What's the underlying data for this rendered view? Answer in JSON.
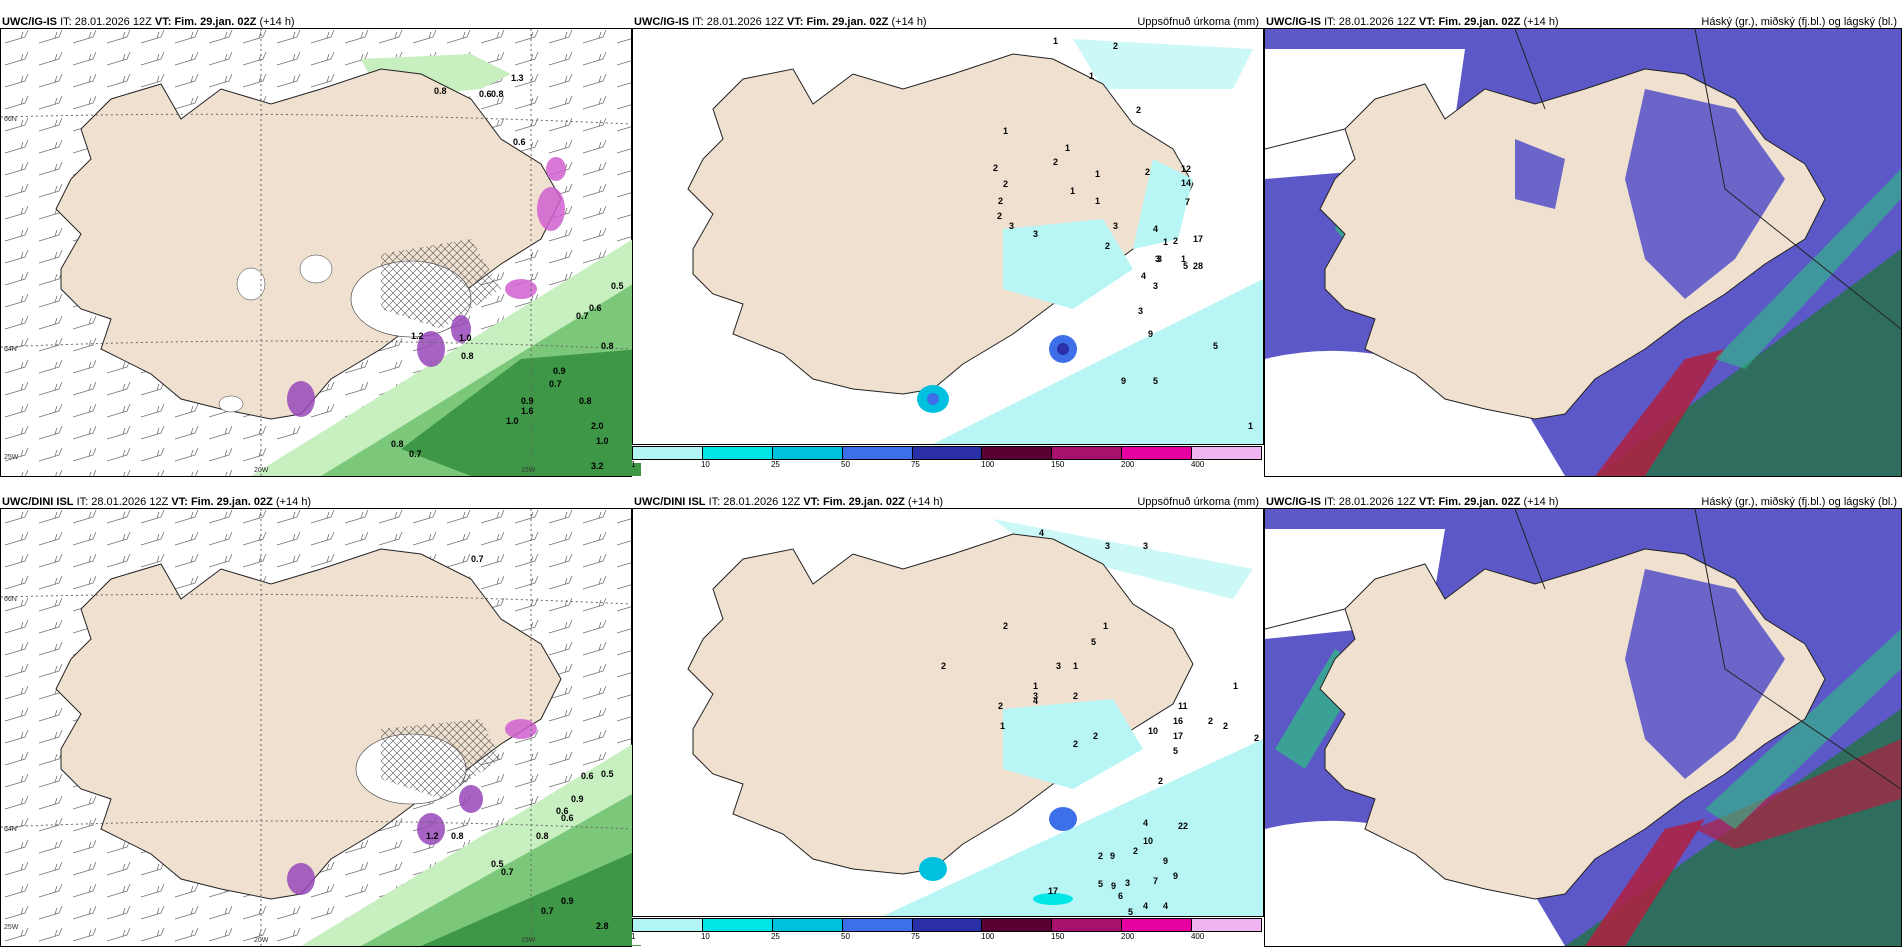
{
  "panels": [
    {
      "model": "UWC/IG-IS",
      "it_label": "IT:",
      "it_value": "28.01.2026 12Z",
      "vt_label": "VT:",
      "vt_value": "Fim. 29.jan. 02Z",
      "lead": "(+14 h)",
      "title": ""
    },
    {
      "model": "UWC/IG-IS",
      "it_label": "IT:",
      "it_value": "28.01.2026 12Z",
      "vt_label": "VT:",
      "vt_value": "Fim. 29.jan. 02Z",
      "lead": "(+14 h)",
      "title": "Uppsöfnuð úrkoma (mm)"
    },
    {
      "model": "UWC/IG-IS",
      "it_label": "IT:",
      "it_value": "28.01.2026 12Z",
      "vt_label": "VT:",
      "vt_value": "Fim. 29.jan. 02Z",
      "lead": "(+14 h)",
      "title": "Háský (gr.), miðský (fj.bl.) og lágský (bl.)"
    },
    {
      "model": "UWC/DINI ISL",
      "it_label": "IT:",
      "it_value": "28.01.2026 12Z",
      "vt_label": "VT:",
      "vt_value": "Fim. 29.jan. 02Z",
      "lead": "(+14 h)",
      "title": ""
    },
    {
      "model": "UWC/DINI ISL",
      "it_label": "IT:",
      "it_value": "28.01.2026 12Z",
      "vt_label": "VT:",
      "vt_value": "Fim. 29.jan. 02Z",
      "lead": "(+14 h)",
      "title": "Uppsöfnuð úrkoma (mm)"
    },
    {
      "model": "UWC/IG-IS",
      "it_label": "IT:",
      "it_value": "28.01.2026 12Z",
      "vt_label": "VT:",
      "vt_value": "Fim. 29.jan. 02Z",
      "lead": "(+14 h)",
      "title": "Háský (gr.), miðský (fj.bl.) og lágský (bl.)"
    }
  ],
  "axes": {
    "lat_66": "66N",
    "lat_64": "64N",
    "lon_25": "25W",
    "lon_20": "20W",
    "lon_15": "15W"
  },
  "colorbar": {
    "ticks": [
      "1",
      "10",
      "25",
      "50",
      "75",
      "100",
      "150",
      "200",
      "400"
    ],
    "colors": [
      "#b3f5f5",
      "#00e6e6",
      "#00c0e0",
      "#3d70e8",
      "#2b2fa8",
      "#5a0032",
      "#a8106e",
      "#e600a0",
      "#f0b4f0"
    ]
  },
  "wind_labels_top": [
    "0.8",
    "0.6",
    "0.8",
    "1.3",
    "0.6",
    "0.5",
    "0.6",
    "0.7",
    "0.8",
    "1.0",
    "0.8",
    "0.9",
    "0.7",
    "0.9",
    "0.8",
    "1.0",
    "1.6",
    "2.0",
    "1.0",
    "0.8",
    "0.7",
    "3.2",
    "1.2"
  ],
  "wind_labels_bottom": [
    "0.7",
    "0.5",
    "0.9",
    "0.6",
    "0.8",
    "0.6",
    "0.5",
    "0.6",
    "0.7",
    "0.9",
    "0.7",
    "2.8",
    "0.8",
    "1.2"
  ],
  "precip_labels_top": [
    "1",
    "2",
    "2",
    "1",
    "1",
    "2",
    "2",
    "2",
    "2",
    "1",
    "2",
    "1",
    "3",
    "3",
    "1",
    "1",
    "3",
    "2",
    "2",
    "4",
    "3",
    "1",
    "12",
    "14",
    "7",
    "17",
    "1",
    "28",
    "3",
    "2",
    "4",
    "5",
    "5",
    "9",
    "9",
    "5",
    "3",
    "3",
    "1",
    "2",
    "1"
  ],
  "precip_labels_bottom": [
    "4",
    "3",
    "3",
    "1",
    "3",
    "5",
    "3",
    "1",
    "2",
    "2",
    "1",
    "2",
    "1",
    "4",
    "2",
    "2",
    "2",
    "10",
    "11",
    "2",
    "2",
    "16",
    "17",
    "5",
    "2",
    "22",
    "2",
    "10",
    "4",
    "2",
    "9",
    "9",
    "7",
    "6",
    "17",
    "5",
    "4",
    "4",
    "9",
    "9",
    "5",
    "3",
    "1",
    "2"
  ],
  "colors": {
    "land": "#efe0d0",
    "sea_white": "#ffffff",
    "green_light": "#c8efc0",
    "green_mid": "#7cc87a",
    "green_dark": "#2e8b3a",
    "purple": "#9848b8",
    "magenta": "#d060d0",
    "cyan_light": "#b8f5f5",
    "cyan": "#00dcdc",
    "cloud_blue": "#5c58c8",
    "cloud_teal": "#2f6d5f",
    "cloud_green": "#2dbf80",
    "cloud_red": "#b02040"
  }
}
